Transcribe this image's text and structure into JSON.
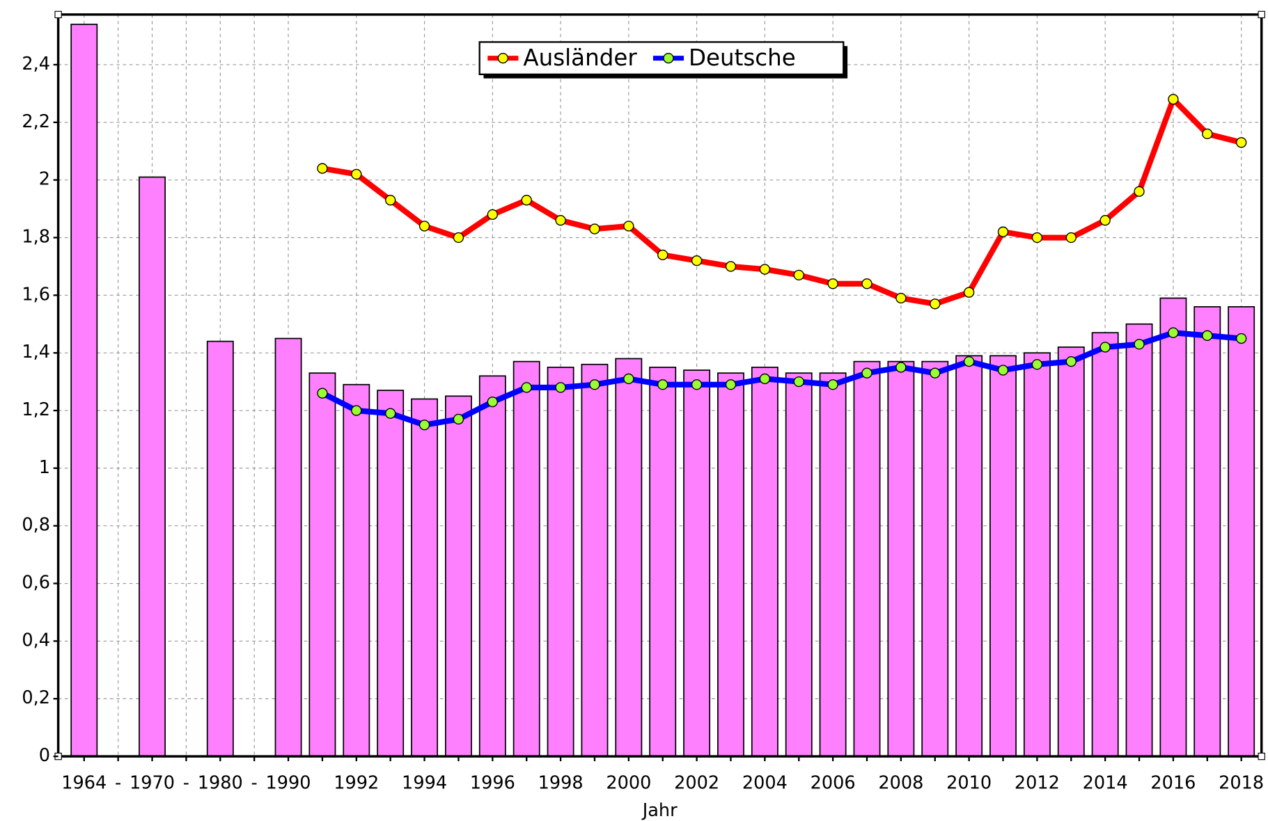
{
  "chart_data": {
    "type": "bar",
    "x_label": "Jahr",
    "categories": [
      "1964",
      "-",
      "1970",
      "-",
      "1980",
      "-",
      "1990",
      null,
      "1992",
      null,
      "1994",
      null,
      "1996",
      null,
      "1998",
      null,
      "2000",
      null,
      "2002",
      null,
      "2004",
      null,
      "2006",
      null,
      "2008",
      null,
      "2010",
      null,
      "2012",
      null,
      "2014",
      null,
      "2016",
      null,
      "2018"
    ],
    "values": [
      2.54,
      null,
      2.01,
      null,
      1.44,
      null,
      1.45,
      1.33,
      1.29,
      1.27,
      1.24,
      1.25,
      1.32,
      1.37,
      1.35,
      1.36,
      1.38,
      1.35,
      1.34,
      1.33,
      1.35,
      1.33,
      1.33,
      1.37,
      1.37,
      1.37,
      1.39,
      1.39,
      1.4,
      1.42,
      1.47,
      1.5,
      1.59,
      1.56,
      1.56
    ],
    "color": "#ff80ff",
    "series": [
      {
        "name": "Ausländer",
        "color": "#ff0000",
        "marker_color": "#ffff00",
        "values": [
          null,
          null,
          null,
          null,
          null,
          null,
          null,
          2.04,
          2.02,
          1.93,
          1.84,
          1.8,
          1.88,
          1.93,
          1.86,
          1.83,
          1.84,
          1.74,
          1.72,
          1.7,
          1.69,
          1.67,
          1.64,
          1.64,
          1.59,
          1.57,
          1.61,
          1.82,
          1.8,
          1.8,
          1.86,
          1.96,
          2.28,
          2.16,
          2.13
        ]
      },
      {
        "name": "Deutsche",
        "color": "#0000ff",
        "marker_color": "#99ff33",
        "values": [
          null,
          null,
          null,
          null,
          null,
          null,
          null,
          1.26,
          1.2,
          1.19,
          1.15,
          1.17,
          1.23,
          1.28,
          1.28,
          1.29,
          1.31,
          1.29,
          1.29,
          1.29,
          1.31,
          1.3,
          1.29,
          1.33,
          1.35,
          1.33,
          1.37,
          1.34,
          1.36,
          1.37,
          1.42,
          1.43,
          1.47,
          1.46,
          1.45
        ]
      }
    ],
    "ylim": [
      0,
      2.574
    ],
    "yticks": [
      0,
      {
        "value": 0.2,
        "label": "0,2"
      },
      {
        "value": 0.4,
        "label": "0,4"
      },
      {
        "value": 0.6,
        "label": "0,6"
      },
      {
        "value": 0.8,
        "label": "0,8"
      },
      1,
      {
        "value": 1.2,
        "label": "1,2"
      },
      {
        "value": 1.4,
        "label": "1,4"
      },
      {
        "value": 1.6,
        "label": "1,6"
      },
      {
        "value": 1.8,
        "label": "1,8"
      },
      2,
      {
        "value": 2.2,
        "label": "2,2"
      },
      {
        "value": 2.4,
        "label": "2,4"
      }
    ],
    "grid": true,
    "legend": "top"
  }
}
